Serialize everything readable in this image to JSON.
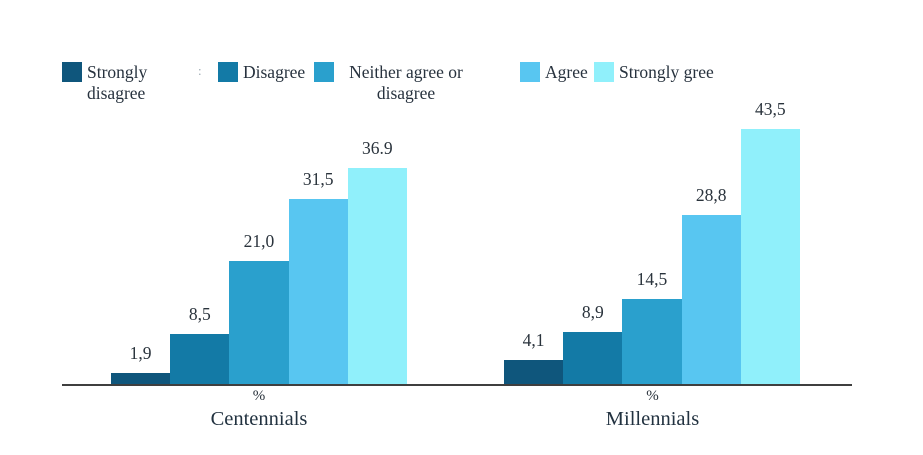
{
  "chart_data": {
    "type": "bar",
    "groups": [
      "Centennials",
      "Millennials"
    ],
    "unit_label": "%",
    "series": [
      {
        "name": "Strongly disagree",
        "color": "#0f567c",
        "values": [
          1.9,
          4.1
        ],
        "labels": [
          "1,9",
          "4,1"
        ]
      },
      {
        "name": "Disagree",
        "color": "#137aa6",
        "values": [
          8.5,
          8.9
        ],
        "labels": [
          "8,5",
          "8,9"
        ]
      },
      {
        "name": "Neither agree or disagree",
        "color": "#2aa0cd",
        "values": [
          21.0,
          14.5
        ],
        "labels": [
          "21,0",
          "14,5"
        ]
      },
      {
        "name": "Agree",
        "color": "#58c6f1",
        "values": [
          31.5,
          28.8
        ],
        "labels": [
          "31,5",
          "28,8"
        ]
      },
      {
        "name": "Strongly gree",
        "color": "#90f0fb",
        "values": [
          36.9,
          43.5
        ],
        "labels": [
          "36.9",
          "43,5"
        ]
      }
    ],
    "ylim": [
      0,
      46
    ],
    "grid": false,
    "legend_position": "top",
    "axis_color": "#3f3f3f"
  },
  "legend": {
    "stray_mark": ":"
  }
}
